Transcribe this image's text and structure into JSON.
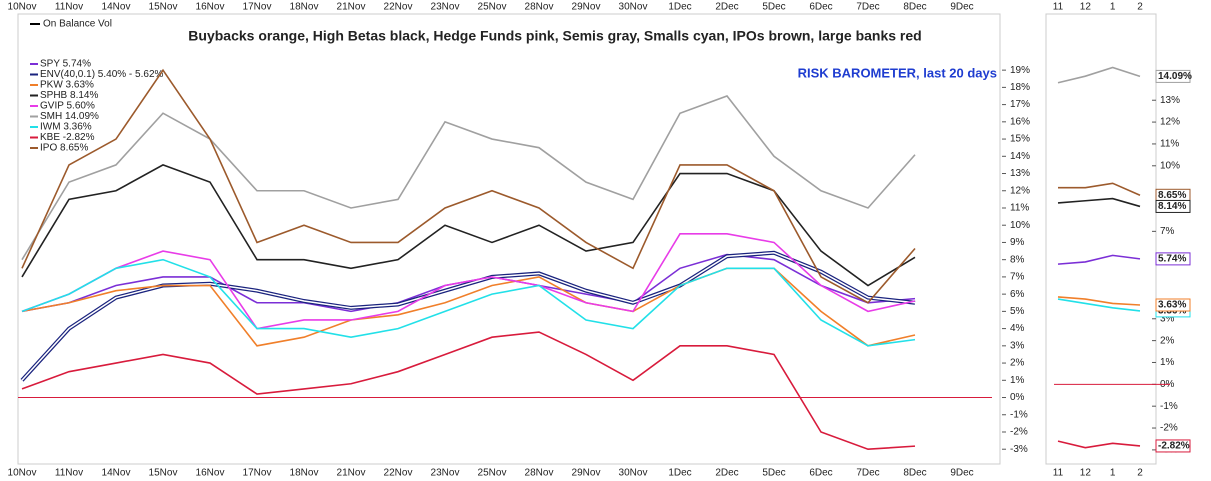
{
  "chart_data": [
    {
      "type": "line",
      "title": "Buybacks orange, High Betas black, Hedge Funds pink, Semis gray, Smalls cyan, IPOs brown, large banks red",
      "annotation": "RISK BAROMETER, last 20 days",
      "indicator_legend": "On Balance Vol",
      "categories": [
        "10Nov",
        "11Nov",
        "14Nov",
        "15Nov",
        "16Nov",
        "17Nov",
        "18Nov",
        "21Nov",
        "22Nov",
        "23Nov",
        "25Nov",
        "28Nov",
        "29Nov",
        "30Nov",
        "1Dec",
        "2Dec",
        "5Dec",
        "6Dec",
        "7Dec",
        "8Dec",
        "9Dec"
      ],
      "ylim": [
        -3.8,
        22.2
      ],
      "yticks": [
        {
          "value": -3,
          "label": "-3%"
        },
        {
          "value": -2,
          "label": "-2%"
        },
        {
          "value": -1,
          "label": "-1%"
        },
        {
          "value": 0,
          "label": "0%"
        },
        {
          "value": 1,
          "label": "1%"
        },
        {
          "value": 2,
          "label": "2%"
        },
        {
          "value": 3,
          "label": "3%"
        },
        {
          "value": 4,
          "label": "4%"
        },
        {
          "value": 5,
          "label": "5%"
        },
        {
          "value": 6,
          "label": "6%"
        },
        {
          "value": 7,
          "label": "7%"
        },
        {
          "value": 8,
          "label": "8%"
        },
        {
          "value": 9,
          "label": "9%"
        },
        {
          "value": 10,
          "label": "10%"
        },
        {
          "value": 11,
          "label": "11%"
        },
        {
          "value": 12,
          "label": "12%"
        },
        {
          "value": 13,
          "label": "13%"
        },
        {
          "value": 14,
          "label": "14%"
        },
        {
          "value": 15,
          "label": "15%"
        },
        {
          "value": 16,
          "label": "16%"
        },
        {
          "value": 17,
          "label": "17%"
        },
        {
          "value": 18,
          "label": "18%"
        },
        {
          "value": 19,
          "label": "19%"
        }
      ],
      "zero_line_color": "#d81b3c",
      "series": [
        {
          "name": "SPY 5.74%",
          "color": "#7b2fd6",
          "values": [
            5,
            5.5,
            6.5,
            7,
            7,
            5.5,
            5.5,
            5,
            5.5,
            6.5,
            7,
            6.5,
            6,
            5.5,
            7.5,
            8.3,
            8,
            6.5,
            5.5,
            5.74,
            null
          ]
        },
        {
          "name": "ENV(40,0.1) 5.40% - 5.62%",
          "color": "#1a237e",
          "values": [
            1,
            4,
            5.8,
            6.5,
            6.6,
            6.2,
            5.6,
            5.2,
            5.4,
            6.2,
            7,
            7.2,
            6.2,
            5.5,
            6.5,
            8.2,
            8.4,
            7.3,
            5.8,
            5.5,
            null
          ]
        },
        {
          "name": "PKW 3.63%",
          "color": "#f07f2a",
          "values": [
            5,
            5.5,
            6.2,
            6.5,
            6.5,
            3,
            3.5,
            4.5,
            4.8,
            5.5,
            6.5,
            7,
            5.5,
            5,
            6.5,
            7.5,
            7.5,
            5,
            3,
            3.63,
            null
          ]
        },
        {
          "name": "SPHB 8.14%",
          "color": "#222222",
          "values": [
            7,
            11.5,
            12,
            13.5,
            12.5,
            8,
            8,
            7.5,
            8,
            10,
            9,
            10,
            8.5,
            9,
            13,
            13,
            12,
            8.5,
            6.5,
            8.14,
            null
          ]
        },
        {
          "name": "GVIP 5.60%",
          "color": "#e83ce8",
          "values": [
            5,
            6,
            7.5,
            8.5,
            8,
            4,
            4.5,
            4.5,
            5,
            6.5,
            7,
            6.5,
            5.5,
            5,
            9.5,
            9.5,
            9,
            6.5,
            5,
            5.6,
            null
          ]
        },
        {
          "name": "SMH 14.09%",
          "color": "#a0a0a0",
          "values": [
            8,
            12.5,
            13.5,
            16.5,
            15,
            12,
            12,
            11,
            11.5,
            16,
            15,
            14.5,
            12.5,
            11.5,
            16.5,
            17.5,
            14,
            12,
            11,
            14.09,
            null
          ]
        },
        {
          "name": "IWM 3.36%",
          "color": "#22e0e8",
          "values": [
            5,
            6,
            7.5,
            8,
            7,
            4,
            4,
            3.5,
            4,
            5,
            6,
            6.5,
            4.5,
            4,
            6.5,
            7.5,
            7.5,
            4.5,
            3,
            3.36,
            null
          ]
        },
        {
          "name": "KBE -2.82%",
          "color": "#d81b3c",
          "values": [
            0.5,
            1.5,
            2,
            2.5,
            2,
            0.2,
            0.5,
            0.8,
            1.5,
            2.5,
            3.5,
            3.8,
            2.5,
            1,
            3,
            3,
            2.5,
            -2,
            -3,
            -2.82,
            null
          ]
        },
        {
          "name": "IPO 8.65%",
          "color": "#9c5a2c",
          "values": [
            7.5,
            13.5,
            15,
            19,
            15,
            9,
            10,
            9,
            9,
            11,
            12,
            11,
            9,
            7.5,
            13.5,
            13.5,
            12,
            7,
            5.5,
            8.65,
            null
          ]
        }
      ]
    },
    {
      "type": "line",
      "categories": [
        "11",
        "12",
        "1",
        "2"
      ],
      "ylim": [
        -3.6,
        16.9
      ],
      "yticks": [
        {
          "value": -3,
          "label": "-3%"
        },
        {
          "value": -2,
          "label": "-2%"
        },
        {
          "value": -1,
          "label": "-1%"
        },
        {
          "value": 0,
          "label": "0%"
        },
        {
          "value": 1,
          "label": "1%"
        },
        {
          "value": 2,
          "label": "2%"
        },
        {
          "value": 3,
          "label": "3%"
        },
        {
          "value": 7,
          "label": "7%"
        },
        {
          "value": 10,
          "label": "10%"
        },
        {
          "value": 11,
          "label": "11%"
        },
        {
          "value": 12,
          "label": "12%"
        },
        {
          "value": 13,
          "label": "13%"
        }
      ],
      "zero_line_color": "#d81b3c",
      "series": [
        {
          "color": "#a0a0a0",
          "values": [
            13.8,
            14.1,
            14.5,
            14.09
          ],
          "value_labels": [
            null,
            null,
            null,
            "14.09%"
          ]
        },
        {
          "color": "#9c5a2c",
          "values": [
            9,
            9,
            9.2,
            8.65
          ],
          "value_labels": [
            null,
            null,
            null,
            "8.65%"
          ]
        },
        {
          "color": "#222222",
          "values": [
            8.3,
            8.4,
            8.5,
            8.14
          ],
          "value_labels": [
            null,
            null,
            null,
            "8.14%"
          ]
        },
        {
          "color": "#7b2fd6",
          "values": [
            5.5,
            5.6,
            5.9,
            5.74
          ],
          "value_labels": [
            null,
            null,
            null,
            "5.74%"
          ]
        },
        {
          "color": "#22e0e8",
          "values": [
            3.9,
            3.7,
            3.5,
            3.36
          ],
          "value_labels": [
            null,
            null,
            null,
            "3.36%"
          ]
        },
        {
          "color": "#f07f2a",
          "values": [
            4,
            3.9,
            3.7,
            3.63
          ],
          "value_labels": [
            null,
            null,
            null,
            "3.63%"
          ]
        },
        {
          "color": "#d81b3c",
          "values": [
            -2.6,
            -2.9,
            -2.7,
            -2.82
          ],
          "value_labels": [
            null,
            null,
            null,
            "-2.82%"
          ]
        }
      ]
    }
  ]
}
